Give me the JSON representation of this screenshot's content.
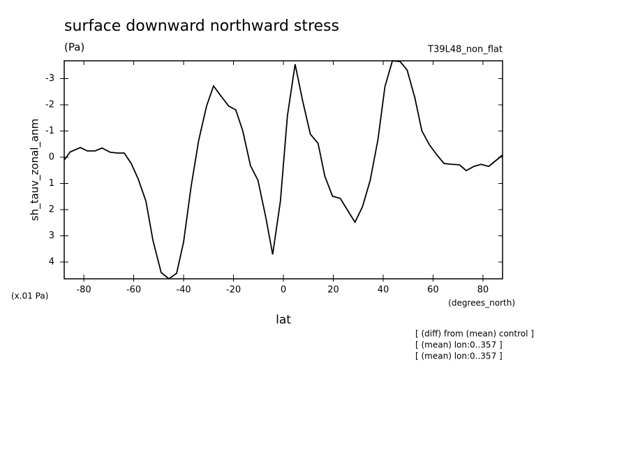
{
  "chart_data": {
    "type": "line",
    "title": "surface downward northward stress",
    "subtitle": "(Pa)",
    "run_label": "T39L48_non_flat",
    "ylabel": "sh_tauv_zonal_anm",
    "y_unit": "(x.01 Pa)",
    "x_unit": "(degrees_north)",
    "xlabel": "lat",
    "notes": [
      "[ (diff) from (mean) control ]",
      "[ (mean) lon:0..357 ]",
      "[ (mean) lon:0..357 ]"
    ],
    "x": [
      -87.8,
      -85.5,
      -81.4,
      -78.6,
      -75.5,
      -72.7,
      -69.4,
      -66.6,
      -63.8,
      -61,
      -58.2,
      -55.1,
      -52.3,
      -49,
      -45.9,
      -42.8,
      -40,
      -37,
      -33.9,
      -30.8,
      -28,
      -25.3,
      -21.9,
      -19.1,
      -16.3,
      -13.2,
      -10.2,
      -7.1,
      -4.3,
      -1.2,
      1.6,
      4.7,
      7.7,
      10.8,
      13.9,
      16.6,
      19.7,
      22.8,
      25.9,
      28.7,
      31.7,
      34.8,
      37.9,
      40.7,
      43.7,
      46.8,
      49.6,
      52.7,
      55.5,
      58.5,
      61.6,
      64.4,
      67.5,
      70.6,
      73.3,
      76.4,
      79.2,
      82.3,
      85.4,
      87.8
    ],
    "series": [
      {
        "name": "sh_tauv_zonal_anm",
        "color": "#000000",
        "values": [
          0.1,
          -0.2,
          -0.37,
          -0.24,
          -0.24,
          -0.35,
          -0.19,
          -0.16,
          -0.16,
          0.24,
          0.83,
          1.68,
          3.17,
          4.4,
          4.64,
          4.43,
          3.23,
          1.12,
          -0.67,
          -1.95,
          -2.72,
          -2.37,
          -1.95,
          -1.81,
          -1.01,
          0.32,
          0.88,
          2.27,
          3.71,
          1.68,
          -1.57,
          -3.55,
          -2.16,
          -0.88,
          -0.53,
          0.72,
          1.49,
          1.57,
          2.05,
          2.48,
          1.89,
          0.88,
          -0.67,
          -2.69,
          -3.68,
          -3.65,
          -3.33,
          -2.27,
          -1.01,
          -0.48,
          -0.08,
          0.24,
          0.27,
          0.29,
          0.51,
          0.35,
          0.27,
          0.35,
          0.11,
          -0.08
        ]
      }
    ],
    "xlim": [
      -87.86,
      87.86
    ],
    "xticks": [
      -80,
      -60,
      -40,
      -20,
      0,
      20,
      40,
      60,
      80
    ],
    "ylim": [
      -3.68,
      4.64
    ],
    "y_inverted": true,
    "yticks": [
      -3,
      -2,
      -1,
      0,
      1,
      2,
      3,
      4
    ]
  }
}
